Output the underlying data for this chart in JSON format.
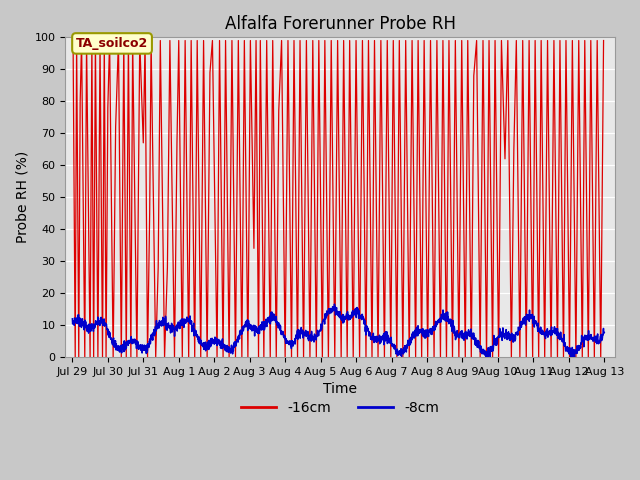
{
  "title": "Alfalfa Forerunner Probe RH",
  "ylabel": "Probe RH (%)",
  "xlabel": "Time",
  "ylim": [
    0,
    100
  ],
  "yticks": [
    0,
    10,
    20,
    30,
    40,
    50,
    60,
    70,
    80,
    90,
    100
  ],
  "xtick_labels": [
    "Jul 29",
    "Jul 30",
    "Jul 31",
    "Aug 1",
    "Aug 2",
    "Aug 3",
    "Aug 4",
    "Aug 5",
    "Aug 6",
    "Aug 7",
    "Aug 8",
    "Aug 9",
    "Aug 10",
    "Aug 11",
    "Aug 12",
    "Aug 13"
  ],
  "xtick_positions": [
    0,
    1,
    2,
    3,
    4,
    5,
    6,
    7,
    8,
    9,
    10,
    11,
    12,
    13,
    14,
    15
  ],
  "annotation_text": "TA_soilco2",
  "line1_color": "#dd0000",
  "line2_color": "#0000cc",
  "legend1_label": "-16cm",
  "legend2_label": "-8cm",
  "title_fontsize": 12,
  "axis_fontsize": 10,
  "tick_fontsize": 8,
  "red_spikes": [
    [
      0.02,
      99
    ],
    [
      0.08,
      0
    ],
    [
      0.12,
      99
    ],
    [
      0.18,
      0
    ],
    [
      0.22,
      80
    ],
    [
      0.26,
      99
    ],
    [
      0.35,
      0
    ],
    [
      0.4,
      99
    ],
    [
      0.5,
      0
    ],
    [
      0.55,
      99
    ],
    [
      0.6,
      0
    ],
    [
      0.65,
      99
    ],
    [
      0.72,
      0
    ],
    [
      0.78,
      99
    ],
    [
      0.85,
      0
    ],
    [
      0.9,
      99
    ],
    [
      0.95,
      0
    ],
    [
      1.0,
      78
    ],
    [
      1.05,
      99
    ],
    [
      1.15,
      0
    ],
    [
      1.22,
      72
    ],
    [
      1.3,
      99
    ],
    [
      1.38,
      0
    ],
    [
      1.45,
      99
    ],
    [
      1.52,
      0
    ],
    [
      1.58,
      99
    ],
    [
      1.65,
      0
    ],
    [
      1.7,
      99
    ],
    [
      1.82,
      0
    ],
    [
      1.9,
      99
    ],
    [
      2.0,
      67
    ],
    [
      2.05,
      99
    ],
    [
      2.12,
      0
    ],
    [
      2.18,
      45
    ],
    [
      2.22,
      99
    ],
    [
      2.35,
      0
    ],
    [
      2.42,
      28
    ],
    [
      2.48,
      99
    ],
    [
      2.6,
      0
    ],
    [
      2.68,
      28
    ],
    [
      2.75,
      99
    ],
    [
      2.88,
      0
    ],
    [
      2.95,
      67
    ],
    [
      3.0,
      99
    ],
    [
      3.1,
      0
    ],
    [
      3.18,
      99
    ],
    [
      3.28,
      0
    ],
    [
      3.35,
      99
    ],
    [
      3.45,
      0
    ],
    [
      3.52,
      99
    ],
    [
      3.62,
      0
    ],
    [
      3.7,
      99
    ],
    [
      3.8,
      0
    ],
    [
      3.88,
      89
    ],
    [
      3.95,
      99
    ],
    [
      4.08,
      0
    ],
    [
      4.15,
      99
    ],
    [
      4.25,
      0
    ],
    [
      4.32,
      99
    ],
    [
      4.42,
      0
    ],
    [
      4.5,
      99
    ],
    [
      4.6,
      0
    ],
    [
      4.68,
      99
    ],
    [
      4.78,
      0
    ],
    [
      4.85,
      99
    ],
    [
      4.95,
      0
    ],
    [
      5.02,
      99
    ],
    [
      5.12,
      34
    ],
    [
      5.18,
      99
    ],
    [
      5.25,
      0
    ],
    [
      5.3,
      99
    ],
    [
      5.4,
      0
    ],
    [
      5.48,
      99
    ],
    [
      5.58,
      0
    ],
    [
      5.65,
      99
    ],
    [
      5.75,
      0
    ],
    [
      5.82,
      77
    ],
    [
      5.9,
      99
    ],
    [
      6.0,
      0
    ],
    [
      6.08,
      99
    ],
    [
      6.18,
      0
    ],
    [
      6.25,
      99
    ],
    [
      6.35,
      0
    ],
    [
      6.42,
      99
    ],
    [
      6.52,
      0
    ],
    [
      6.6,
      99
    ],
    [
      6.7,
      0
    ],
    [
      6.78,
      99
    ],
    [
      6.88,
      0
    ],
    [
      6.95,
      99
    ],
    [
      7.05,
      0
    ],
    [
      7.12,
      99
    ],
    [
      7.22,
      0
    ],
    [
      7.3,
      99
    ],
    [
      7.4,
      0
    ],
    [
      7.48,
      99
    ],
    [
      7.58,
      0
    ],
    [
      7.65,
      99
    ],
    [
      7.75,
      0
    ],
    [
      7.82,
      99
    ],
    [
      7.92,
      0
    ],
    [
      8.0,
      99
    ],
    [
      8.1,
      0
    ],
    [
      8.18,
      99
    ],
    [
      8.28,
      0
    ],
    [
      8.35,
      99
    ],
    [
      8.45,
      0
    ],
    [
      8.52,
      99
    ],
    [
      8.62,
      0
    ],
    [
      8.7,
      99
    ],
    [
      8.8,
      0
    ],
    [
      8.88,
      99
    ],
    [
      8.98,
      0
    ],
    [
      9.05,
      99
    ],
    [
      9.15,
      0
    ],
    [
      9.22,
      99
    ],
    [
      9.32,
      0
    ],
    [
      9.4,
      99
    ],
    [
      9.5,
      0
    ],
    [
      9.58,
      99
    ],
    [
      9.68,
      0
    ],
    [
      9.75,
      99
    ],
    [
      9.85,
      0
    ],
    [
      9.92,
      99
    ],
    [
      10.02,
      0
    ],
    [
      10.1,
      99
    ],
    [
      10.2,
      0
    ],
    [
      10.28,
      99
    ],
    [
      10.38,
      0
    ],
    [
      10.45,
      99
    ],
    [
      10.55,
      0
    ],
    [
      10.62,
      99
    ],
    [
      10.72,
      0
    ],
    [
      10.8,
      99
    ],
    [
      10.9,
      0
    ],
    [
      10.98,
      99
    ],
    [
      11.08,
      0
    ],
    [
      11.15,
      99
    ],
    [
      11.25,
      0
    ],
    [
      11.32,
      88
    ],
    [
      11.4,
      99
    ],
    [
      11.5,
      0
    ],
    [
      11.58,
      99
    ],
    [
      11.68,
      0
    ],
    [
      11.75,
      99
    ],
    [
      11.85,
      0
    ],
    [
      11.92,
      99
    ],
    [
      12.02,
      0
    ],
    [
      12.1,
      99
    ],
    [
      12.2,
      62
    ],
    [
      12.28,
      99
    ],
    [
      12.38,
      0
    ],
    [
      12.45,
      65
    ],
    [
      12.52,
      99
    ],
    [
      12.62,
      0
    ],
    [
      12.7,
      99
    ],
    [
      12.8,
      0
    ],
    [
      12.88,
      99
    ],
    [
      12.98,
      0
    ],
    [
      13.05,
      99
    ],
    [
      13.15,
      0
    ],
    [
      13.22,
      99
    ],
    [
      13.32,
      0
    ],
    [
      13.4,
      99
    ],
    [
      13.5,
      0
    ],
    [
      13.58,
      99
    ],
    [
      13.68,
      0
    ],
    [
      13.75,
      99
    ],
    [
      13.85,
      0
    ],
    [
      13.92,
      99
    ],
    [
      14.02,
      0
    ],
    [
      14.1,
      99
    ],
    [
      14.2,
      0
    ],
    [
      14.28,
      99
    ],
    [
      14.38,
      0
    ],
    [
      14.45,
      99
    ],
    [
      14.55,
      0
    ],
    [
      14.62,
      99
    ],
    [
      14.72,
      0
    ],
    [
      14.8,
      99
    ],
    [
      14.9,
      0
    ],
    [
      14.98,
      99
    ]
  ]
}
